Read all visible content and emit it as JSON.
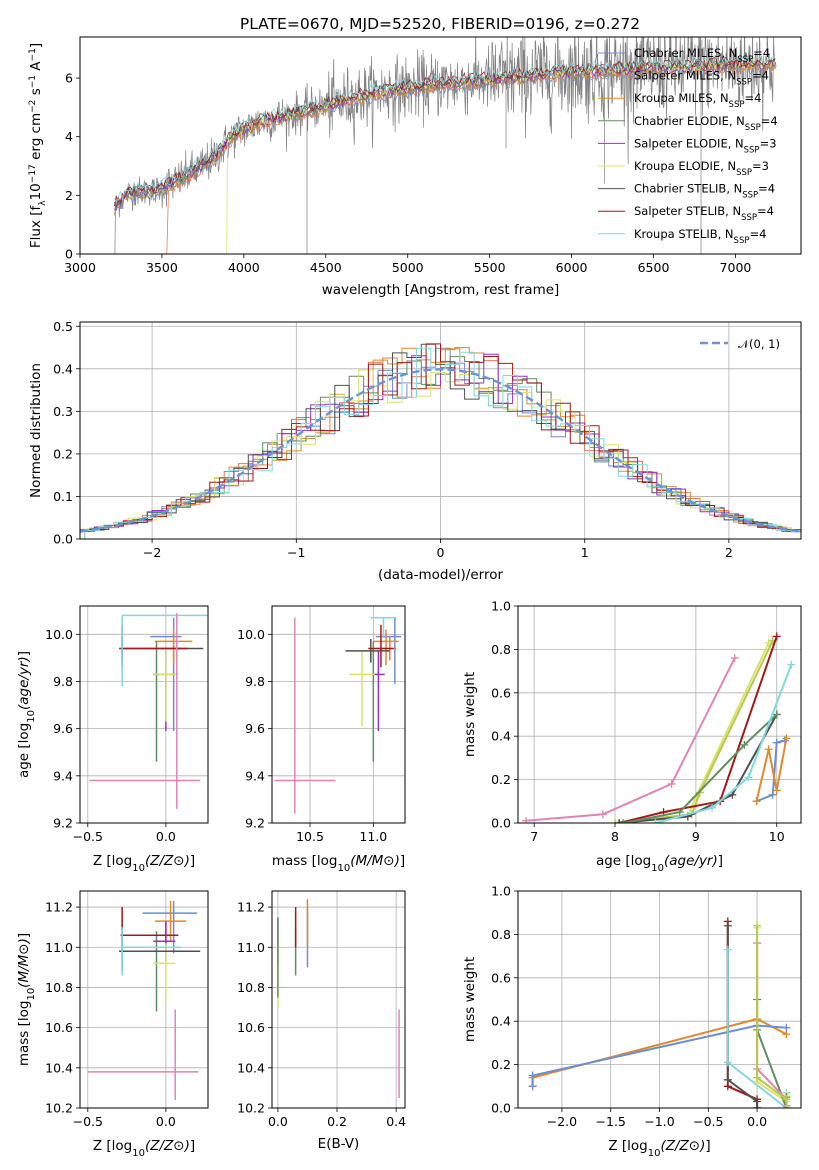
{
  "figure": {
    "title": "PLATE=0670, MJD=52520, FIBERID=0196, z=0.272"
  },
  "models": [
    {
      "id": "chabrier-miles",
      "label": "Chabrier MILES, N_SSP=4",
      "label_main": "Chabrier MILES, N",
      "label_sub": "SSP",
      "label_end": "=4",
      "color": "#6c8ed6"
    },
    {
      "id": "salpeter-miles",
      "label": "Salpeter MILES, N_SSP=4",
      "label_main": "Salpeter MILES, N",
      "label_sub": "SSP",
      "label_end": "=4",
      "color": "#e8774b"
    },
    {
      "id": "kroupa-miles",
      "label": "Kroupa MILES, N_SSP=4",
      "label_main": "Kroupa MILES, N",
      "label_sub": "SSP",
      "label_end": "=4",
      "color": "#e08a2c"
    },
    {
      "id": "chabrier-elodie",
      "label": "Chabrier ELODIE, N_SSP=4",
      "label_main": "Chabrier ELODIE, N",
      "label_sub": "SSP",
      "label_end": "=4",
      "color": "#5f8f5f"
    },
    {
      "id": "salpeter-elodie",
      "label": "Salpeter ELODIE, N_SSP=3",
      "label_main": "Salpeter ELODIE, N",
      "label_sub": "SSP",
      "label_end": "=3",
      "color": "#9b30c0"
    },
    {
      "id": "kroupa-elodie",
      "label": "Kroupa ELODIE, N_SSP=3",
      "label_main": "Kroupa ELODIE, N",
      "label_sub": "SSP",
      "label_end": "=3",
      "color": "#d9e36a"
    },
    {
      "id": "chabrier-stelib",
      "label": "Chabrier STELIB, N_SSP=4",
      "label_main": "Chabrier STELIB, N",
      "label_sub": "SSP",
      "label_end": "=4",
      "color": "#505050"
    },
    {
      "id": "salpeter-stelib",
      "label": "Salpeter STELIB, N_SSP=4",
      "label_main": "Salpeter STELIB, N",
      "label_sub": "SSP",
      "label_end": "=4",
      "color": "#a31919"
    },
    {
      "id": "kroupa-stelib",
      "label": "Kroupa STELIB, N_SSP=4",
      "label_main": "Kroupa STELIB, N",
      "label_sub": "SSP",
      "label_end": "=4",
      "color": "#80d8e0"
    }
  ],
  "chart_data": [
    {
      "id": "spectrum",
      "type": "line",
      "xlabel": "wavelength [Angstrom, rest frame]",
      "ylabel": "Flux [f_λ 10^-17 erg cm^-2 s^-1 A^-1]",
      "xlim": [
        3000,
        7400
      ],
      "ylim": [
        0,
        7.4
      ],
      "xticks": [
        3000,
        3500,
        4000,
        4500,
        5000,
        5500,
        6000,
        6500,
        7000
      ],
      "yticks": [
        0,
        2,
        4,
        6
      ],
      "legend": "upper-right",
      "data_color": "#808080",
      "continuum_knots": {
        "x": [
          3210,
          3300,
          3450,
          3600,
          3800,
          3950,
          4100,
          4400,
          4800,
          5200,
          5600,
          6000,
          6400,
          6800,
          7250
        ],
        "y": [
          1.6,
          2.1,
          2.15,
          2.5,
          3.2,
          4.1,
          4.5,
          4.9,
          5.5,
          5.8,
          6.0,
          6.2,
          6.3,
          6.4,
          6.5
        ]
      }
    },
    {
      "id": "residuals",
      "type": "histogram",
      "xlabel": "(data-model)/error",
      "ylabel": "Normed distribution",
      "xlim": [
        -2.5,
        2.5
      ],
      "ylim": [
        0,
        0.51
      ],
      "xticks": [
        -2,
        -1,
        0,
        1,
        2
      ],
      "yticks": [
        0,
        0.1,
        0.2,
        0.3,
        0.4,
        0.5
      ],
      "bin_width": 0.1,
      "reference": {
        "label": "𝒩(0, 1)",
        "mean": 0,
        "sigma": 1,
        "color": "#6a94d8"
      },
      "legend": "upper-right"
    },
    {
      "id": "age-vs-Z",
      "type": "errorbar",
      "xlabel": "Z [log10(Z/Z⊙)]",
      "ylabel": "age [log10(age/yr)]",
      "xlim": [
        -0.55,
        0.27
      ],
      "ylim": [
        9.2,
        10.12
      ],
      "xticks": [
        -0.5,
        0.0
      ],
      "yticks": [
        9.2,
        9.4,
        9.6,
        9.8,
        10.0
      ],
      "points": [
        {
          "model": "chabrier-miles",
          "x": 0.05,
          "xerr": [
            0.15,
            0.05
          ],
          "y": 9.99,
          "yerr": [
            0.4,
            0.08
          ]
        },
        {
          "model": "salpeter-miles",
          "x": 0.05,
          "xerr": [
            0.05,
            0.05
          ],
          "y": 9.94,
          "yerr": [
            0.05,
            0.05
          ]
        },
        {
          "model": "kroupa-miles",
          "x": 0.05,
          "xerr": [
            0.12,
            0.12
          ],
          "y": 9.97,
          "yerr": [
            0.1,
            0.05
          ]
        },
        {
          "model": "chabrier-elodie",
          "x": -0.06,
          "xerr": [
            0.0,
            0.0
          ],
          "y": 9.92,
          "yerr": [
            0.46,
            0.05
          ]
        },
        {
          "model": "salpeter-elodie",
          "x": 0.0,
          "xerr": [
            0.08,
            0.06
          ],
          "y": 9.83,
          "yerr": [
            0.24,
            0.1
          ]
        },
        {
          "model": "kroupa-elodie",
          "x": 0.0,
          "xerr": [
            0.08,
            0.08
          ],
          "y": 9.83,
          "yerr": [
            0.2,
            0.1
          ]
        },
        {
          "model": "chabrier-stelib",
          "x": -0.28,
          "xerr": [
            0.02,
            0.52
          ],
          "y": 9.94,
          "yerr": [
            0.05,
            0.05
          ]
        },
        {
          "model": "salpeter-stelib",
          "x": -0.28,
          "xerr": [
            0.01,
            0.42
          ],
          "y": 9.94,
          "yerr": [
            0.08,
            0.1
          ]
        },
        {
          "model": "kroupa-stelib",
          "x": -0.28,
          "xerr": [
            0.0,
            0.63
          ],
          "y": 10.08,
          "yerr": [
            0.3,
            0.0
          ]
        },
        {
          "model": "salpeter-miles",
          "x": 0.07,
          "xerr": [
            0.56,
            0.15
          ],
          "y": 9.38,
          "yerr": [
            0.12,
            0.71
          ],
          "override_color": "#e283b8"
        }
      ]
    },
    {
      "id": "age-vs-mass",
      "type": "errorbar",
      "xlabel": "mass [log10(M/M⊙)]",
      "ylabel": "",
      "xlim": [
        10.2,
        11.25
      ],
      "ylim": [
        9.2,
        10.12
      ],
      "xticks": [
        10.5,
        11.0
      ],
      "yticks": [
        9.2,
        9.4,
        9.6,
        9.8,
        10.0
      ],
      "points": [
        {
          "x": 11.17,
          "xerr": [
            0.15,
            0.05
          ],
          "y": 9.99,
          "yerr": [
            0.2,
            0.08
          ],
          "color": "#6c8ed6"
        },
        {
          "x": 11.13,
          "xerr": [
            0.1,
            0.05
          ],
          "y": 9.94,
          "yerr": [
            0.05,
            0.05
          ],
          "color": "#e8774b"
        },
        {
          "x": 11.1,
          "xerr": [
            0.1,
            0.1
          ],
          "y": 9.97,
          "yerr": [
            0.1,
            0.05
          ],
          "color": "#e08a2c"
        },
        {
          "x": 11.0,
          "xerr": [
            0.0,
            0.0
          ],
          "y": 9.92,
          "yerr": [
            0.46,
            0.05
          ],
          "color": "#5f8f5f"
        },
        {
          "x": 11.04,
          "xerr": [
            0.05,
            0.05
          ],
          "y": 9.83,
          "yerr": [
            0.24,
            0.1
          ],
          "color": "#9b30c0"
        },
        {
          "x": 10.91,
          "xerr": [
            0.1,
            0.1
          ],
          "y": 9.83,
          "yerr": [
            0.22,
            0.1
          ],
          "color": "#d9e36a"
        },
        {
          "x": 10.98,
          "xerr": [
            0.2,
            0.15
          ],
          "y": 9.93,
          "yerr": [
            0.05,
            0.05
          ],
          "color": "#505050"
        },
        {
          "x": 11.06,
          "xerr": [
            0.1,
            0.1
          ],
          "y": 9.94,
          "yerr": [
            0.08,
            0.1
          ],
          "color": "#a31919"
        },
        {
          "x": 11.08,
          "xerr": [
            0.1,
            0.1
          ],
          "y": 10.07,
          "yerr": [
            0.08,
            0.0
          ],
          "color": "#80d8e0"
        },
        {
          "x": 10.38,
          "xerr": [
            0.16,
            0.32
          ],
          "y": 9.38,
          "yerr": [
            0.14,
            0.69
          ],
          "color": "#e283b8"
        }
      ]
    },
    {
      "id": "weight-vs-age",
      "type": "line",
      "xlabel": "age [log10(age/yr)]",
      "ylabel": "mass weight",
      "xlim": [
        6.8,
        10.3
      ],
      "ylim": [
        0,
        1.0
      ],
      "xticks": [
        7,
        8,
        9,
        10
      ],
      "yticks": [
        0,
        0.2,
        0.4,
        0.6,
        0.8,
        1.0
      ],
      "series": [
        {
          "color": "#e283b8",
          "x": [
            6.9,
            7.85,
            8.7,
            9.48
          ],
          "y": [
            0.01,
            0.04,
            0.18,
            0.76
          ]
        },
        {
          "color": "#d9e36a",
          "x": [
            8.0,
            8.9,
            9.0,
            9.9
          ],
          "y": [
            0.0,
            0.03,
            0.12,
            0.83
          ]
        },
        {
          "color": "#b8c94a",
          "x": [
            8.0,
            8.95,
            9.05,
            9.95
          ],
          "y": [
            0.0,
            0.04,
            0.14,
            0.84
          ]
        },
        {
          "color": "#a31919",
          "x": [
            8.05,
            8.6,
            9.3,
            10.0
          ],
          "y": [
            0.0,
            0.05,
            0.1,
            0.86
          ]
        },
        {
          "color": "#505050",
          "x": [
            8.05,
            8.9,
            9.45,
            10.0
          ],
          "y": [
            0.0,
            0.03,
            0.13,
            0.5
          ]
        },
        {
          "color": "#5f8f5f",
          "x": [
            8.1,
            8.8,
            9.6,
            10.0
          ],
          "y": [
            0.0,
            0.05,
            0.36,
            0.5
          ]
        },
        {
          "color": "#80d8e0",
          "x": [
            8.5,
            9.2,
            9.65,
            10.18
          ],
          "y": [
            0.0,
            0.07,
            0.21,
            0.73
          ]
        },
        {
          "color": "#6c8ed6",
          "x": [
            9.75,
            9.95,
            10.0,
            10.1
          ],
          "y": [
            0.1,
            0.13,
            0.37,
            0.38
          ]
        },
        {
          "color": "#e08a2c",
          "x": [
            9.75,
            9.9,
            10.0,
            10.12
          ],
          "y": [
            0.1,
            0.34,
            0.15,
            0.39
          ]
        }
      ]
    },
    {
      "id": "mass-vs-Z",
      "type": "errorbar",
      "xlabel": "Z [log10(Z/Z⊙)]",
      "ylabel": "mass [log10(M/M⊙)]",
      "xlim": [
        -0.55,
        0.27
      ],
      "ylim": [
        10.2,
        11.28
      ],
      "xticks": [
        -0.5,
        0.0
      ],
      "yticks": [
        10.2,
        10.4,
        10.6,
        10.8,
        11.0,
        11.2
      ],
      "points": [
        {
          "x": 0.05,
          "xerr": [
            0.2,
            0.15
          ],
          "y": 11.17,
          "yerr": [
            0.2,
            0.06
          ],
          "color": "#6c8ed6"
        },
        {
          "x": 0.03,
          "xerr": [
            0.1,
            0.1
          ],
          "y": 11.13,
          "yerr": [
            0.1,
            0.1
          ],
          "color": "#e08a2c"
        },
        {
          "x": 0.0,
          "xerr": [
            0.1,
            0.08
          ],
          "y": 11.06,
          "yerr": [
            0.06,
            0.06
          ],
          "color": "#a31919"
        },
        {
          "x": -0.06,
          "xerr": [
            0.0,
            0.0
          ],
          "y": 10.98,
          "yerr": [
            0.3,
            0.1
          ],
          "color": "#5f8f5f"
        },
        {
          "x": 0.0,
          "xerr": [
            0.08,
            0.06
          ],
          "y": 11.03,
          "yerr": [
            0.1,
            0.1
          ],
          "color": "#9b30c0"
        },
        {
          "x": 0.0,
          "xerr": [
            0.08,
            0.06
          ],
          "y": 10.92,
          "yerr": [
            0.2,
            0.1
          ],
          "color": "#d9e36a"
        },
        {
          "x": -0.28,
          "xerr": [
            0.02,
            0.5
          ],
          "y": 10.98,
          "yerr": [
            0.1,
            0.14
          ],
          "color": "#505050"
        },
        {
          "x": -0.28,
          "xerr": [
            0.01,
            0.28
          ],
          "y": 11.06,
          "yerr": [
            0.05,
            0.14
          ],
          "color": "#a31919"
        },
        {
          "x": -0.28,
          "xerr": [
            0.0,
            0.38
          ],
          "y": 11.0,
          "yerr": [
            0.14,
            0.1
          ],
          "color": "#80d8e0"
        },
        {
          "x": 0.06,
          "xerr": [
            0.56,
            0.15
          ],
          "y": 10.38,
          "yerr": [
            0.14,
            0.31
          ],
          "color": "#e283b8"
        }
      ]
    },
    {
      "id": "mass-vs-ebv",
      "type": "errorbar",
      "xlabel": "E(B-V)",
      "ylabel": "",
      "xlim": [
        -0.02,
        0.43
      ],
      "ylim": [
        10.2,
        11.28
      ],
      "xticks": [
        0.0,
        0.2,
        0.4
      ],
      "yticks": [
        10.2,
        10.4,
        10.6,
        10.8,
        11.0,
        11.2
      ],
      "points": [
        {
          "x": 0.1,
          "xerr": [
            0,
            0
          ],
          "y": 11.0,
          "yerr": [
            0.1,
            0.2
          ],
          "color": "#6c8ed6"
        },
        {
          "x": 0.1,
          "xerr": [
            0,
            0
          ],
          "y": 11.1,
          "yerr": [
            0.1,
            0.14
          ],
          "color": "#e08a2c"
        },
        {
          "x": 0.06,
          "xerr": [
            0,
            0
          ],
          "y": 11.0,
          "yerr": [
            0.14,
            0.1
          ],
          "color": "#5f8f5f"
        },
        {
          "x": 0.06,
          "xerr": [
            0,
            0
          ],
          "y": 11.1,
          "yerr": [
            0.1,
            0.1
          ],
          "color": "#a31919"
        },
        {
          "x": 0.0,
          "xerr": [
            0,
            0
          ],
          "y": 11.06,
          "yerr": [
            0.14,
            0.08
          ],
          "color": "#9b30c0"
        },
        {
          "x": 0.0,
          "xerr": [
            0,
            0
          ],
          "y": 10.92,
          "yerr": [
            0.22,
            0.1
          ],
          "color": "#d9e36a"
        },
        {
          "x": 0.0,
          "xerr": [
            0,
            0
          ],
          "y": 11.05,
          "yerr": [
            0.3,
            0.1
          ],
          "color": "#5f8f5f"
        },
        {
          "x": 0.41,
          "xerr": [
            0,
            0
          ],
          "y": 10.45,
          "yerr": [
            0.2,
            0.24
          ],
          "color": "#e283b8"
        }
      ]
    },
    {
      "id": "weight-vs-Z",
      "type": "line",
      "xlabel": "Z [log10(Z/Z⊙)]",
      "ylabel": "mass weight",
      "xlim": [
        -2.45,
        0.45
      ],
      "ylim": [
        0,
        1.0
      ],
      "xticks": [
        -2.0,
        -1.5,
        -1.0,
        -0.5,
        0.0
      ],
      "yticks": [
        0,
        0.2,
        0.4,
        0.6,
        0.8,
        1.0
      ],
      "series": [
        {
          "color": "#e08a2c",
          "x": [
            -2.3,
            -2.3,
            0.0,
            0.3
          ],
          "y": [
            0.1,
            0.14,
            0.41,
            0.34
          ]
        },
        {
          "color": "#6c8ed6",
          "x": [
            -2.3,
            -2.3,
            0.0,
            0.3
          ],
          "y": [
            0.1,
            0.15,
            0.38,
            0.37
          ]
        },
        {
          "color": "#a31919",
          "x": [
            -0.3,
            -0.3,
            0.0,
            0.0
          ],
          "y": [
            0.86,
            0.1,
            0.04,
            0.0
          ]
        },
        {
          "color": "#505050",
          "x": [
            -0.3,
            -0.3,
            0.0,
            0.0
          ],
          "y": [
            0.84,
            0.13,
            0.03,
            0.0
          ]
        },
        {
          "color": "#80d8e0",
          "x": [
            -0.3,
            -0.3,
            0.3,
            0.3
          ],
          "y": [
            0.73,
            0.21,
            0.0,
            0.07
          ]
        },
        {
          "color": "#d9e36a",
          "x": [
            0.0,
            0.0,
            0.3,
            0.3
          ],
          "y": [
            0.83,
            0.12,
            0.03,
            0.06
          ]
        },
        {
          "color": "#5f8f5f",
          "x": [
            0.0,
            0.0,
            0.3,
            0.3
          ],
          "y": [
            0.5,
            0.36,
            0.0,
            0.05
          ]
        },
        {
          "color": "#e283b8",
          "x": [
            0.0,
            0.0,
            0.3,
            0.3
          ],
          "y": [
            0.76,
            0.18,
            0.04,
            0.01
          ]
        },
        {
          "color": "#b8c94a",
          "x": [
            0.0,
            0.0,
            0.3,
            0.3
          ],
          "y": [
            0.84,
            0.14,
            0.04,
            0.0
          ]
        }
      ]
    }
  ]
}
